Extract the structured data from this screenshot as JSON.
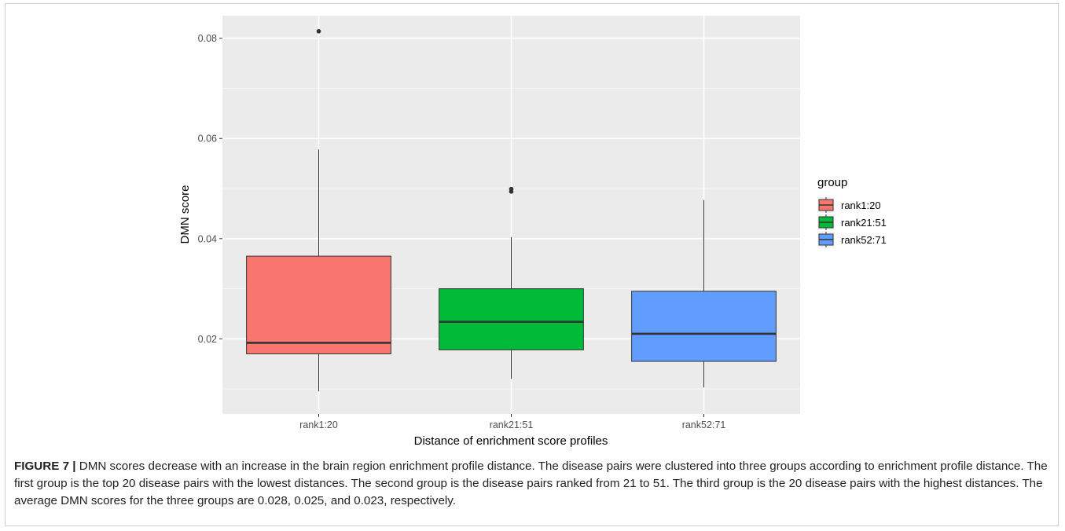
{
  "chart_data": {
    "type": "box",
    "xlabel": "Distance of enrichment score profiles",
    "ylabel": "DMN score",
    "ylim": [
      0.005,
      0.0845
    ],
    "yticks": [
      0.02,
      0.04,
      0.06,
      0.08
    ],
    "ytick_labels": [
      "0.02",
      "0.04",
      "0.06",
      "0.08"
    ],
    "grid": true,
    "legend": {
      "title": "group",
      "placement": "right"
    },
    "categories": [
      "rank1:20",
      "rank21:51",
      "rank52:71"
    ],
    "series": [
      {
        "name": "rank1:20",
        "color": "#F8766D",
        "min": 0.0095,
        "q1": 0.017,
        "median": 0.0192,
        "q3": 0.0365,
        "max": 0.0578,
        "outliers": [
          0.0814
        ]
      },
      {
        "name": "rank21:51",
        "color": "#00BA38",
        "min": 0.012,
        "q1": 0.0178,
        "median": 0.0234,
        "q3": 0.03,
        "max": 0.0403,
        "outliers": [
          0.0494,
          0.0499
        ]
      },
      {
        "name": "rank52:71",
        "color": "#619CFF",
        "min": 0.0103,
        "q1": 0.0155,
        "median": 0.021,
        "q3": 0.0295,
        "max": 0.0477,
        "outliers": []
      }
    ]
  },
  "caption": {
    "label": "FIGURE 7 |",
    "text": " DMN scores decrease with an increase in the brain region enrichment profile distance. The disease pairs were clustered into three groups according to enrichment profile distance. The first group is the top 20 disease pairs with the lowest distances. The second group is the disease pairs ranked from 21 to 51. The third group is the 20 disease pairs with the highest distances. The average DMN scores for the three groups are 0.028, 0.025, and 0.023, respectively."
  }
}
